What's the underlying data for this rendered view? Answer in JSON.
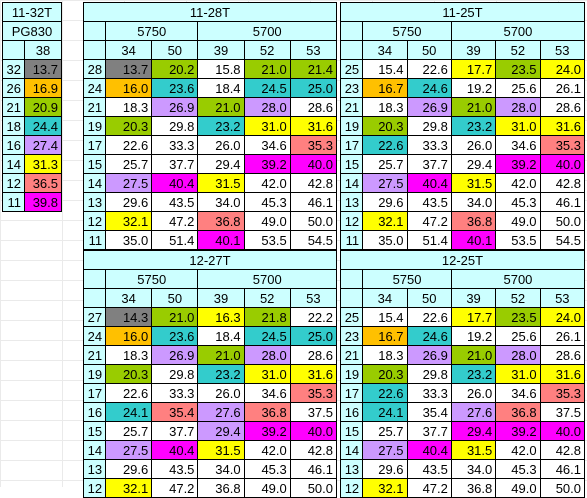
{
  "colors": {
    "w": "#ffffff",
    "g": "#808080",
    "o": "#ffc000",
    "l": "#99cc00",
    "t": "#33cccc",
    "v": "#cc99ff",
    "y": "#ffff00",
    "r": "#ff8080",
    "m": "#ff00ff",
    "header": "#ccffff"
  },
  "left": {
    "title": "11-32T",
    "sub": "PG830",
    "col": "38",
    "rows": [
      {
        "cog": "32",
        "cell": [
          "13.7",
          "g"
        ]
      },
      {
        "cog": "26",
        "cell": [
          "16.9",
          "o"
        ]
      },
      {
        "cog": "21",
        "cell": [
          "20.9",
          "l"
        ]
      },
      {
        "cog": "18",
        "cell": [
          "24.4",
          "t"
        ]
      },
      {
        "cog": "16",
        "cell": [
          "27.4",
          "v"
        ]
      },
      {
        "cog": "14",
        "cell": [
          "31.3",
          "y"
        ]
      },
      {
        "cog": "12",
        "cell": [
          "36.5",
          "r"
        ]
      },
      {
        "cog": "11",
        "cell": [
          "39.8",
          "m"
        ]
      }
    ]
  },
  "tables": [
    {
      "id": "t1128",
      "title": "11-28T",
      "groups": [
        "5750",
        "5700"
      ],
      "cols": [
        "34",
        "50",
        "39",
        "52",
        "53"
      ],
      "rows": [
        {
          "cog": "28",
          "cells": [
            [
              "13.7",
              "g"
            ],
            [
              "20.2",
              "l"
            ],
            [
              "15.8",
              "w"
            ],
            [
              "21.0",
              "l"
            ],
            [
              "21.4",
              "l"
            ]
          ]
        },
        {
          "cog": "24",
          "cells": [
            [
              "16.0",
              "o"
            ],
            [
              "23.6",
              "t"
            ],
            [
              "18.4",
              "w"
            ],
            [
              "24.5",
              "t"
            ],
            [
              "25.0",
              "t"
            ]
          ]
        },
        {
          "cog": "21",
          "cells": [
            [
              "18.3",
              "w"
            ],
            [
              "26.9",
              "v"
            ],
            [
              "21.0",
              "l"
            ],
            [
              "28.0",
              "v"
            ],
            [
              "28.6",
              "w"
            ]
          ]
        },
        {
          "cog": "19",
          "cells": [
            [
              "20.3",
              "l"
            ],
            [
              "29.8",
              "w"
            ],
            [
              "23.2",
              "t"
            ],
            [
              "31.0",
              "y"
            ],
            [
              "31.6",
              "y"
            ]
          ]
        },
        {
          "cog": "17",
          "cells": [
            [
              "22.6",
              "w"
            ],
            [
              "33.3",
              "w"
            ],
            [
              "26.0",
              "w"
            ],
            [
              "34.6",
              "w"
            ],
            [
              "35.3",
              "r"
            ]
          ]
        },
        {
          "cog": "15",
          "cells": [
            [
              "25.7",
              "w"
            ],
            [
              "37.7",
              "w"
            ],
            [
              "29.4",
              "w"
            ],
            [
              "39.2",
              "m"
            ],
            [
              "40.0",
              "m"
            ]
          ]
        },
        {
          "cog": "14",
          "cells": [
            [
              "27.5",
              "v"
            ],
            [
              "40.4",
              "m"
            ],
            [
              "31.5",
              "y"
            ],
            [
              "42.0",
              "w"
            ],
            [
              "42.8",
              "w"
            ]
          ]
        },
        {
          "cog": "13",
          "cells": [
            [
              "29.6",
              "w"
            ],
            [
              "43.5",
              "w"
            ],
            [
              "34.0",
              "w"
            ],
            [
              "45.3",
              "w"
            ],
            [
              "46.1",
              "w"
            ]
          ]
        },
        {
          "cog": "12",
          "cells": [
            [
              "32.1",
              "y"
            ],
            [
              "47.2",
              "w"
            ],
            [
              "36.8",
              "r"
            ],
            [
              "49.0",
              "w"
            ],
            [
              "50.0",
              "w"
            ]
          ]
        },
        {
          "cog": "11",
          "cells": [
            [
              "35.0",
              "w"
            ],
            [
              "51.4",
              "w"
            ],
            [
              "40.1",
              "m"
            ],
            [
              "53.5",
              "w"
            ],
            [
              "54.5",
              "w"
            ]
          ]
        }
      ]
    },
    {
      "id": "t1125a",
      "title": "11-25T",
      "groups": [
        "5750",
        "5700"
      ],
      "cols": [
        "34",
        "50",
        "39",
        "52",
        "53"
      ],
      "rows": [
        {
          "cog": "25",
          "cells": [
            [
              "15.4",
              "w"
            ],
            [
              "22.6",
              "w"
            ],
            [
              "17.7",
              "y"
            ],
            [
              "23.5",
              "l"
            ],
            [
              "24.0",
              "y"
            ]
          ]
        },
        {
          "cog": "23",
          "cells": [
            [
              "16.7",
              "o"
            ],
            [
              "24.6",
              "t"
            ],
            [
              "19.2",
              "w"
            ],
            [
              "25.6",
              "w"
            ],
            [
              "26.1",
              "w"
            ]
          ]
        },
        {
          "cog": "21",
          "cells": [
            [
              "18.3",
              "w"
            ],
            [
              "26.9",
              "v"
            ],
            [
              "21.0",
              "l"
            ],
            [
              "28.0",
              "v"
            ],
            [
              "28.6",
              "w"
            ]
          ]
        },
        {
          "cog": "19",
          "cells": [
            [
              "20.3",
              "l"
            ],
            [
              "29.8",
              "w"
            ],
            [
              "23.2",
              "t"
            ],
            [
              "31.0",
              "y"
            ],
            [
              "31.6",
              "y"
            ]
          ]
        },
        {
          "cog": "17",
          "cells": [
            [
              "22.6",
              "t"
            ],
            [
              "33.3",
              "w"
            ],
            [
              "26.0",
              "w"
            ],
            [
              "34.6",
              "w"
            ],
            [
              "35.3",
              "r"
            ]
          ]
        },
        {
          "cog": "15",
          "cells": [
            [
              "25.7",
              "w"
            ],
            [
              "37.7",
              "w"
            ],
            [
              "29.4",
              "w"
            ],
            [
              "39.2",
              "m"
            ],
            [
              "40.0",
              "m"
            ]
          ]
        },
        {
          "cog": "14",
          "cells": [
            [
              "27.5",
              "v"
            ],
            [
              "40.4",
              "m"
            ],
            [
              "31.5",
              "y"
            ],
            [
              "42.0",
              "w"
            ],
            [
              "42.8",
              "w"
            ]
          ]
        },
        {
          "cog": "13",
          "cells": [
            [
              "29.6",
              "w"
            ],
            [
              "43.5",
              "w"
            ],
            [
              "34.0",
              "w"
            ],
            [
              "45.3",
              "w"
            ],
            [
              "46.1",
              "w"
            ]
          ]
        },
        {
          "cog": "12",
          "cells": [
            [
              "32.1",
              "y"
            ],
            [
              "47.2",
              "w"
            ],
            [
              "36.8",
              "r"
            ],
            [
              "49.0",
              "w"
            ],
            [
              "50.0",
              "w"
            ]
          ]
        },
        {
          "cog": "11",
          "cells": [
            [
              "35.0",
              "w"
            ],
            [
              "51.4",
              "w"
            ],
            [
              "40.1",
              "m"
            ],
            [
              "53.5",
              "w"
            ],
            [
              "54.5",
              "w"
            ]
          ]
        }
      ]
    },
    {
      "id": "t1227",
      "title": "12-27T",
      "groups": [
        "5750",
        "5700"
      ],
      "cols": [
        "34",
        "50",
        "39",
        "52",
        "53"
      ],
      "rows": [
        {
          "cog": "27",
          "cells": [
            [
              "14.3",
              "g"
            ],
            [
              "21.0",
              "l"
            ],
            [
              "16.3",
              "y"
            ],
            [
              "21.8",
              "l"
            ],
            [
              "22.2",
              "w"
            ]
          ]
        },
        {
          "cog": "24",
          "cells": [
            [
              "16.0",
              "o"
            ],
            [
              "23.6",
              "t"
            ],
            [
              "18.4",
              "w"
            ],
            [
              "24.5",
              "t"
            ],
            [
              "25.0",
              "t"
            ]
          ]
        },
        {
          "cog": "21",
          "cells": [
            [
              "18.3",
              "w"
            ],
            [
              "26.9",
              "v"
            ],
            [
              "21.0",
              "l"
            ],
            [
              "28.0",
              "v"
            ],
            [
              "28.6",
              "w"
            ]
          ]
        },
        {
          "cog": "19",
          "cells": [
            [
              "20.3",
              "l"
            ],
            [
              "29.8",
              "w"
            ],
            [
              "23.2",
              "t"
            ],
            [
              "31.0",
              "y"
            ],
            [
              "31.6",
              "y"
            ]
          ]
        },
        {
          "cog": "17",
          "cells": [
            [
              "22.6",
              "w"
            ],
            [
              "33.3",
              "w"
            ],
            [
              "26.0",
              "w"
            ],
            [
              "34.6",
              "w"
            ],
            [
              "35.3",
              "r"
            ]
          ]
        },
        {
          "cog": "16",
          "cells": [
            [
              "24.1",
              "t"
            ],
            [
              "35.4",
              "r"
            ],
            [
              "27.6",
              "v"
            ],
            [
              "36.8",
              "r"
            ],
            [
              "37.5",
              "w"
            ]
          ]
        },
        {
          "cog": "15",
          "cells": [
            [
              "25.7",
              "w"
            ],
            [
              "37.7",
              "w"
            ],
            [
              "29.4",
              "v"
            ],
            [
              "39.2",
              "m"
            ],
            [
              "40.0",
              "m"
            ]
          ]
        },
        {
          "cog": "14",
          "cells": [
            [
              "27.5",
              "v"
            ],
            [
              "40.4",
              "m"
            ],
            [
              "31.5",
              "y"
            ],
            [
              "42.0",
              "w"
            ],
            [
              "42.8",
              "w"
            ]
          ]
        },
        {
          "cog": "13",
          "cells": [
            [
              "29.6",
              "w"
            ],
            [
              "43.5",
              "w"
            ],
            [
              "34.0",
              "w"
            ],
            [
              "45.3",
              "w"
            ],
            [
              "46.1",
              "w"
            ]
          ]
        },
        {
          "cog": "12",
          "cells": [
            [
              "32.1",
              "y"
            ],
            [
              "47.2",
              "w"
            ],
            [
              "36.8",
              "w"
            ],
            [
              "49.0",
              "w"
            ],
            [
              "50.0",
              "w"
            ]
          ]
        }
      ]
    },
    {
      "id": "t1225b",
      "title": "12-25T",
      "groups": [
        "5750",
        "5700"
      ],
      "cols": [
        "34",
        "50",
        "39",
        "52",
        "53"
      ],
      "rows": [
        {
          "cog": "25",
          "cells": [
            [
              "15.4",
              "w"
            ],
            [
              "22.6",
              "w"
            ],
            [
              "17.7",
              "y"
            ],
            [
              "23.5",
              "l"
            ],
            [
              "24.0",
              "y"
            ]
          ]
        },
        {
          "cog": "23",
          "cells": [
            [
              "16.7",
              "o"
            ],
            [
              "24.6",
              "t"
            ],
            [
              "19.2",
              "w"
            ],
            [
              "25.6",
              "w"
            ],
            [
              "26.1",
              "w"
            ]
          ]
        },
        {
          "cog": "21",
          "cells": [
            [
              "18.3",
              "w"
            ],
            [
              "26.9",
              "v"
            ],
            [
              "21.0",
              "l"
            ],
            [
              "28.0",
              "v"
            ],
            [
              "28.6",
              "w"
            ]
          ]
        },
        {
          "cog": "19",
          "cells": [
            [
              "20.3",
              "l"
            ],
            [
              "29.8",
              "w"
            ],
            [
              "23.2",
              "t"
            ],
            [
              "31.0",
              "y"
            ],
            [
              "31.6",
              "y"
            ]
          ]
        },
        {
          "cog": "17",
          "cells": [
            [
              "22.6",
              "t"
            ],
            [
              "33.3",
              "w"
            ],
            [
              "26.0",
              "w"
            ],
            [
              "34.6",
              "w"
            ],
            [
              "35.3",
              "r"
            ]
          ]
        },
        {
          "cog": "16",
          "cells": [
            [
              "24.1",
              "t"
            ],
            [
              "35.4",
              "w"
            ],
            [
              "27.6",
              "v"
            ],
            [
              "36.8",
              "r"
            ],
            [
              "37.5",
              "w"
            ]
          ]
        },
        {
          "cog": "15",
          "cells": [
            [
              "25.7",
              "w"
            ],
            [
              "37.7",
              "w"
            ],
            [
              "29.4",
              "m"
            ],
            [
              "39.2",
              "m"
            ],
            [
              "40.0",
              "m"
            ]
          ]
        },
        {
          "cog": "14",
          "cells": [
            [
              "27.5",
              "v"
            ],
            [
              "40.4",
              "m"
            ],
            [
              "31.5",
              "y"
            ],
            [
              "42.0",
              "w"
            ],
            [
              "42.8",
              "w"
            ]
          ]
        },
        {
          "cog": "13",
          "cells": [
            [
              "29.6",
              "w"
            ],
            [
              "43.5",
              "w"
            ],
            [
              "34.0",
              "w"
            ],
            [
              "45.3",
              "w"
            ],
            [
              "46.1",
              "w"
            ]
          ]
        },
        {
          "cog": "12",
          "cells": [
            [
              "32.1",
              "y"
            ],
            [
              "47.2",
              "w"
            ],
            [
              "36.8",
              "w"
            ],
            [
              "49.0",
              "w"
            ],
            [
              "50.0",
              "w"
            ]
          ]
        }
      ]
    }
  ]
}
